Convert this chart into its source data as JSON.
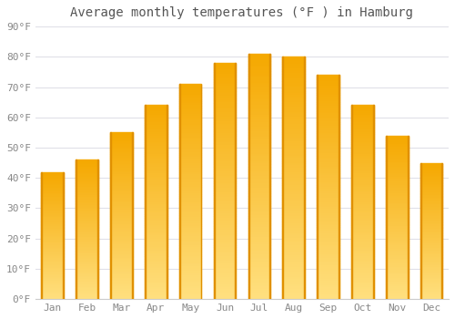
{
  "title": "Average monthly temperatures (°F ) in Hamburg",
  "months": [
    "Jan",
    "Feb",
    "Mar",
    "Apr",
    "May",
    "Jun",
    "Jul",
    "Aug",
    "Sep",
    "Oct",
    "Nov",
    "Dec"
  ],
  "values": [
    42,
    46,
    55,
    64,
    71,
    78,
    81,
    80,
    74,
    64,
    54,
    45
  ],
  "ylim": [
    0,
    90
  ],
  "yticks": [
    0,
    10,
    20,
    30,
    40,
    50,
    60,
    70,
    80,
    90
  ],
  "ytick_labels": [
    "0°F",
    "10°F",
    "20°F",
    "30°F",
    "40°F",
    "50°F",
    "60°F",
    "70°F",
    "80°F",
    "90°F"
  ],
  "background_color": "#ffffff",
  "plot_bg_color": "#ffffff",
  "grid_color": "#e0e0e8",
  "bar_color_top": "#F5A800",
  "bar_color_bottom": "#FFE080",
  "bar_edge_color": "#E09000",
  "title_fontsize": 10,
  "tick_fontsize": 8,
  "bar_width": 0.65
}
